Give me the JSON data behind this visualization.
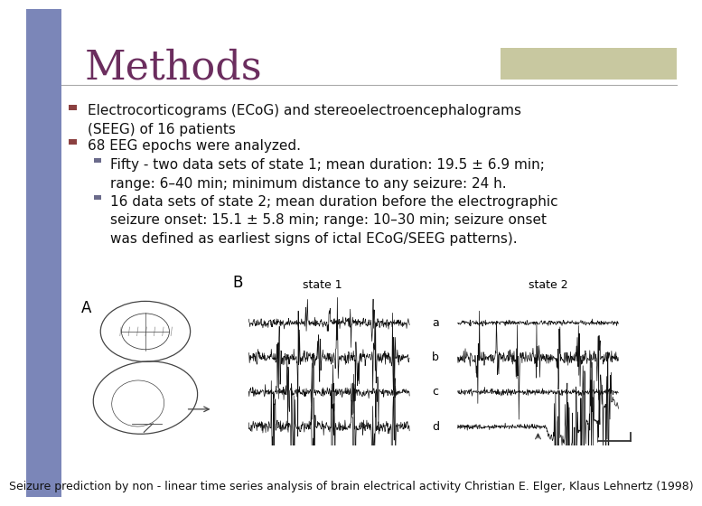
{
  "title": "Methods",
  "title_color": "#6B2D5E",
  "title_fontsize": 32,
  "title_font": "serif",
  "bg_color": "#FFFFFF",
  "left_bar_color": "#7B86B8",
  "header_bar_color": "#C8C8A0",
  "bullet1_color": "#8B4040",
  "bullet2_color": "#8B4040",
  "sub_bullet_color": "#6B6B8B",
  "bullet1_text": "Electrocorticograms (ECoG) and stereoelectroencephalograms\n(SEEG) of 16 patients",
  "bullet2_text": "68 EEG epochs were analyzed.",
  "sub1_text": "Fifty - two data sets of state 1; mean duration: 19.5 ± 6.9 min;\nrange: 6–40 min; minimum distance to any seizure: 24 h.",
  "sub2_text": "16 data sets of state 2; mean duration before the electrographic\nseizure onset: 15.1 ± 5.8 min; range: 10–30 min; seizure onset\nwas defined as earliest signs of ictal ECoG/SEEG patterns).",
  "footer_text": "Seizure prediction by non - linear time series analysis of brain electrical activity Christian E. Elger, Klaus Lehnertz (1998)",
  "content_fontsize": 11,
  "footer_fontsize": 9,
  "image_label_A": "A",
  "image_label_B": "B",
  "state1_label": "state 1",
  "state2_label": "state 2",
  "channel_labels": [
    "a",
    "b",
    "c",
    "d"
  ]
}
